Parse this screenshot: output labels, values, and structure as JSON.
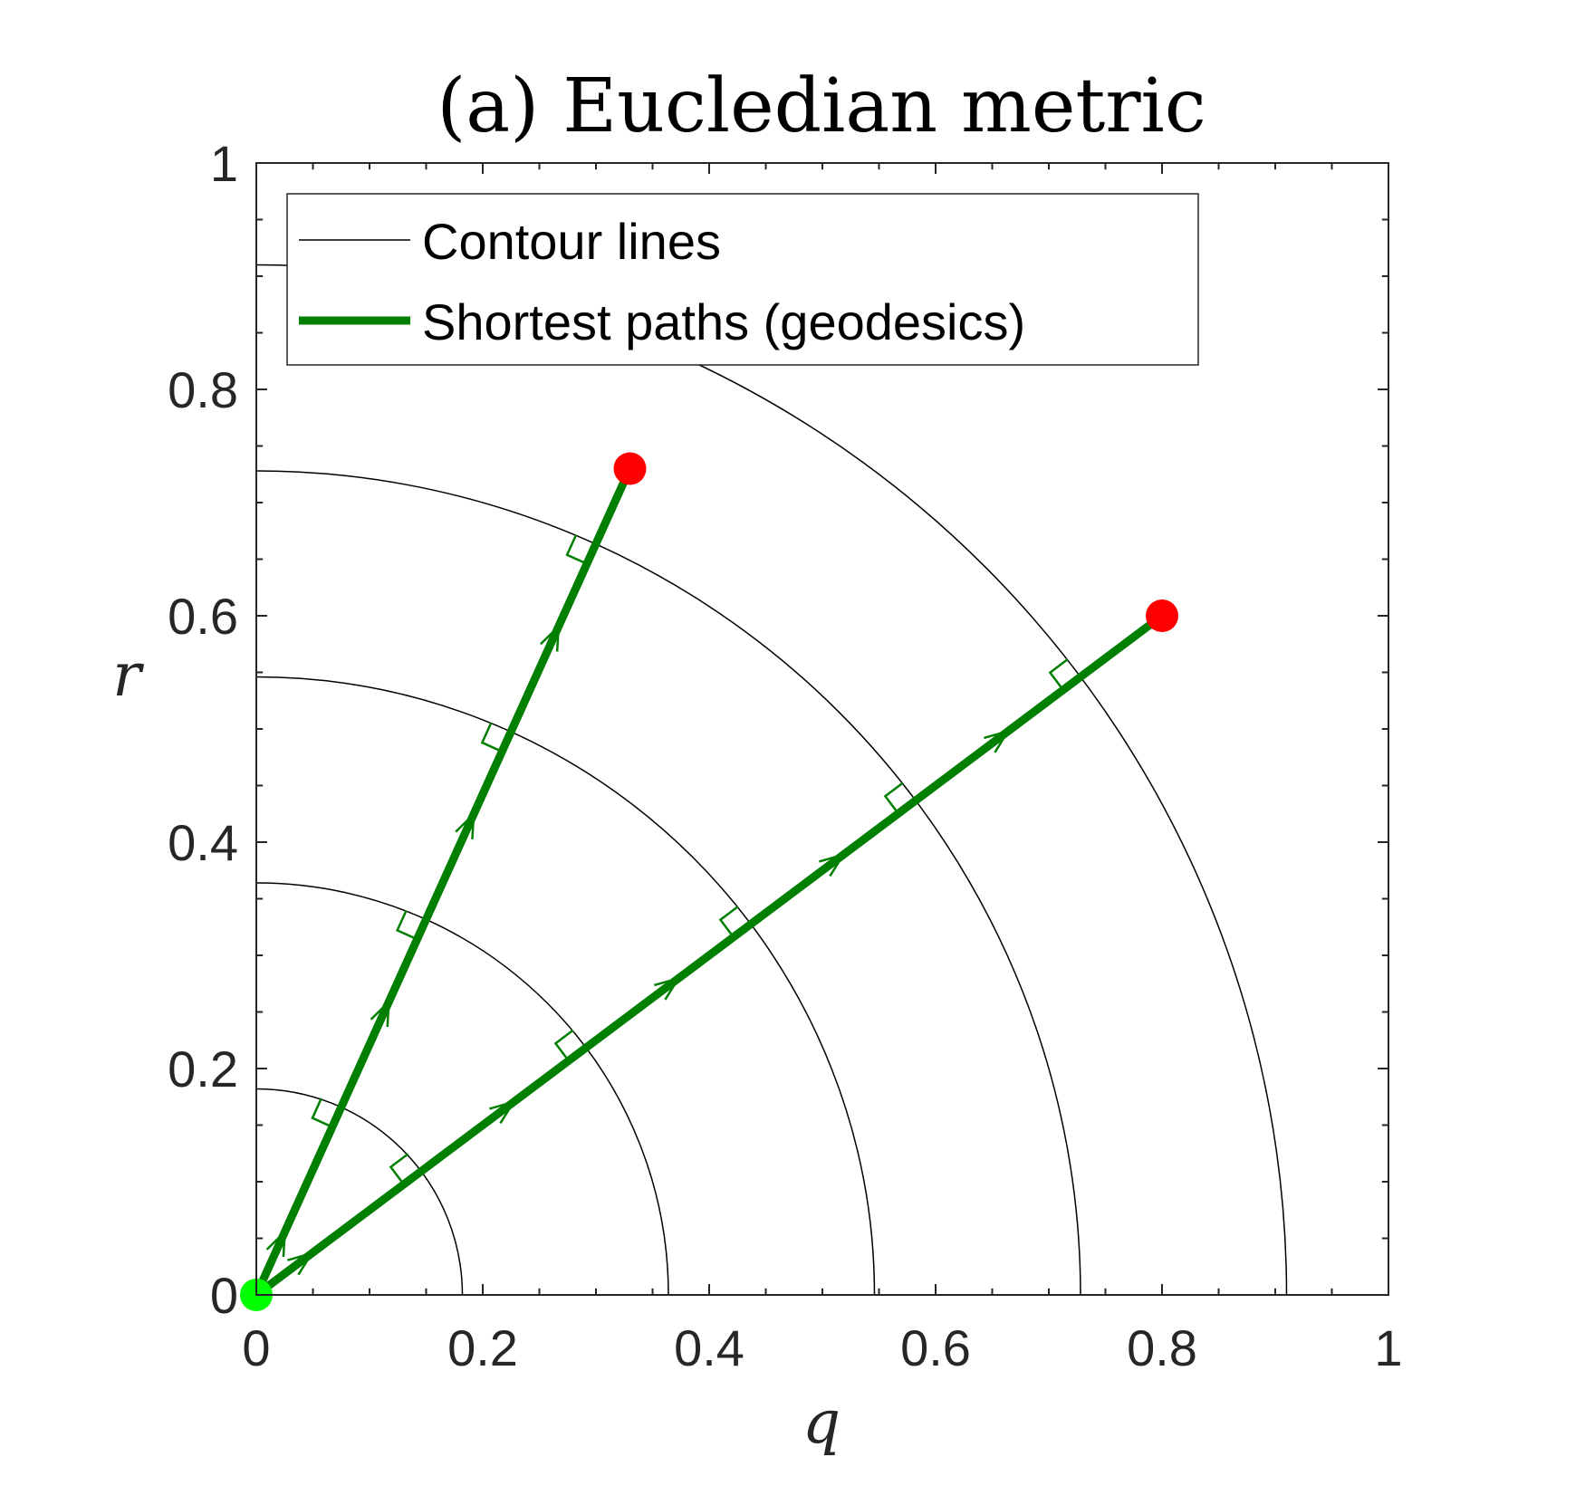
{
  "chart_data": {
    "type": "line",
    "title": "(a) Eucledian metric",
    "xlabel": "q",
    "ylabel": "r",
    "xlim": [
      0,
      1
    ],
    "ylim": [
      0,
      1
    ],
    "xticks": [
      0,
      0.2,
      0.4,
      0.6,
      0.8,
      1
    ],
    "yticks": [
      0,
      0.2,
      0.4,
      0.6,
      0.8,
      1
    ],
    "xtick_labels": [
      "0",
      "0.2",
      "0.4",
      "0.6",
      "0.8",
      "1"
    ],
    "ytick_labels": [
      "0",
      "0.2",
      "0.4",
      "0.6",
      "0.8",
      "1"
    ],
    "grid": false,
    "legend": {
      "position": "top",
      "entries": [
        "Contour lines",
        "Shortest paths (geodesics)"
      ]
    },
    "contours": {
      "radii": [
        0.182,
        0.364,
        0.546,
        0.728,
        0.91
      ]
    },
    "geodesics": [
      {
        "start": [
          0,
          0
        ],
        "end": [
          0.33,
          0.73
        ]
      },
      {
        "start": [
          0,
          0
        ],
        "end": [
          0.8,
          0.6
        ]
      }
    ],
    "start_point": [
      0,
      0
    ],
    "end_points": [
      [
        0.33,
        0.73
      ],
      [
        0.8,
        0.6
      ]
    ],
    "colors": {
      "contour": "#000000",
      "geodesic": "#007f00",
      "start_marker": "#00ff00",
      "end_marker": "#ff0000"
    }
  }
}
